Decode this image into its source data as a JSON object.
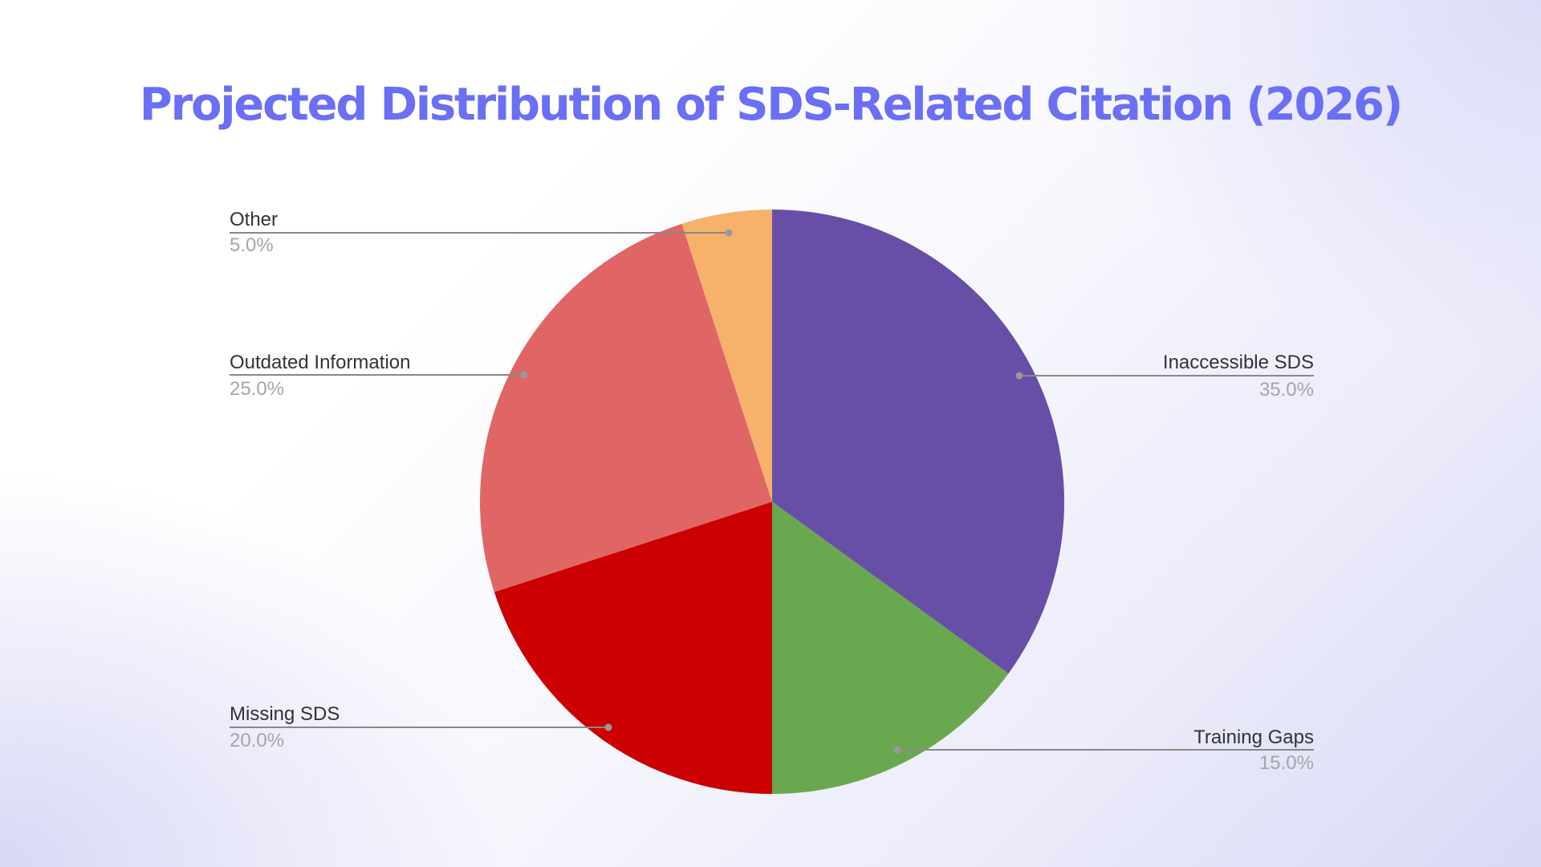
{
  "title": "Projected Distribution of SDS-Related Citation (2026)",
  "chart_data": {
    "type": "pie",
    "title": "Projected Distribution of SDS-Related Citation (2026)",
    "categories": [
      "Inaccessible SDS",
      "Training Gaps",
      "Missing SDS",
      "Outdated Information",
      "Other"
    ],
    "values": [
      35.0,
      15.0,
      20.0,
      25.0,
      5.0
    ],
    "value_labels": [
      "35.0%",
      "15.0%",
      "20.0%",
      "25.0%",
      "5.0%"
    ],
    "colors": [
      "#674ea7",
      "#6aa84f",
      "#cc0000",
      "#e06666",
      "#f6b26b"
    ],
    "start_angle": "12 o'clock, clockwise",
    "legend": "leader-line labels"
  },
  "labels": {
    "inaccessible": {
      "name": "Inaccessible SDS",
      "pct": "35.0%"
    },
    "training": {
      "name": "Training Gaps",
      "pct": "15.0%"
    },
    "missing": {
      "name": "Missing SDS",
      "pct": "20.0%"
    },
    "outdated": {
      "name": "Outdated Information",
      "pct": "25.0%"
    },
    "other": {
      "name": "Other",
      "pct": "5.0%"
    }
  }
}
